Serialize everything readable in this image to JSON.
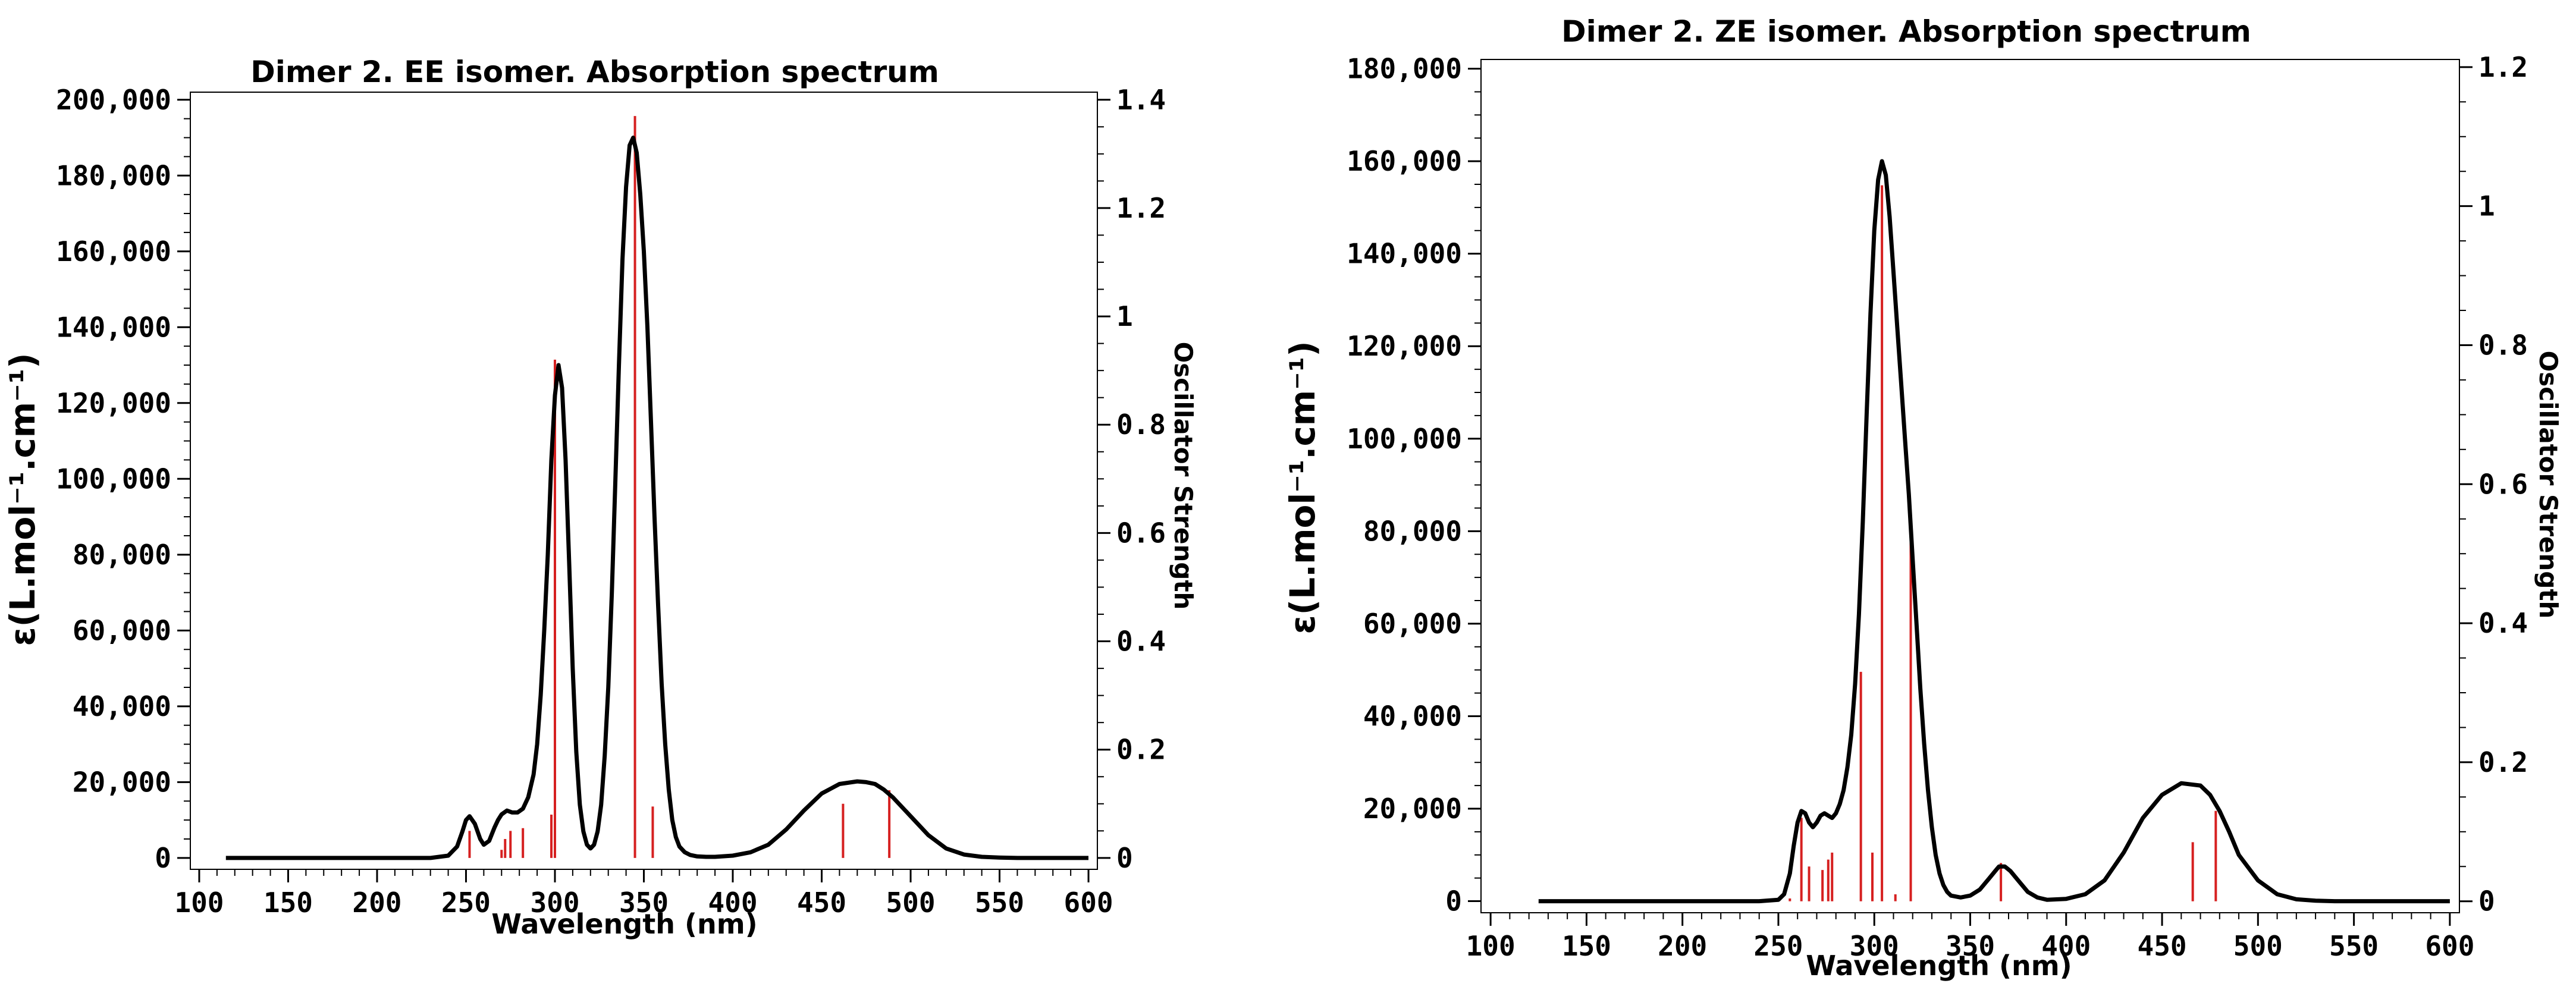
{
  "chart_data": [
    {
      "type": "line",
      "title": "Dimer 2.  EE isomer. Absorption spectrum",
      "xlabel": "Wavelength (nm)",
      "ylabel": "ε(L.mol⁻¹.cm⁻¹)",
      "y2label": "Oscillator Strength",
      "xlim": [
        95,
        605
      ],
      "ylim": [
        -3000,
        202000
      ],
      "y2lim": [
        -0.021,
        1.414
      ],
      "x_ticks": [
        100,
        150,
        200,
        250,
        300,
        350,
        400,
        450,
        500,
        550,
        600
      ],
      "y_ticks": [
        0,
        20000,
        40000,
        60000,
        80000,
        100000,
        120000,
        140000,
        160000,
        180000,
        200000
      ],
      "y_tick_labels": [
        "0",
        "20,000",
        "40,000",
        "60,000",
        "80,000",
        "100,000",
        "120,000",
        "140,000",
        "160,000",
        "180,000",
        "200,000"
      ],
      "y2_ticks": [
        0,
        0.2,
        0.4,
        0.6,
        0.8,
        1.0,
        1.2,
        1.4
      ],
      "y2_tick_labels": [
        "0",
        "0.2",
        "0.4",
        "0.6",
        "0.8",
        "1",
        "1.2",
        "1.4"
      ],
      "series": [
        {
          "type": "line",
          "color": "#000000",
          "x": [
            115,
            230,
            240,
            245,
            248,
            250,
            252,
            255,
            258,
            260,
            263,
            266,
            268,
            270,
            273,
            276,
            279,
            282,
            285,
            288,
            290,
            292,
            294,
            296,
            298,
            300,
            302,
            304,
            306,
            308,
            310,
            312,
            314,
            316,
            318,
            320,
            322,
            324,
            326,
            328,
            330,
            332,
            334,
            336,
            338,
            340,
            342,
            344,
            346,
            348,
            350,
            352,
            354,
            356,
            358,
            360,
            362,
            364,
            366,
            368,
            370,
            373,
            376,
            380,
            385,
            390,
            400,
            410,
            420,
            430,
            440,
            450,
            460,
            470,
            475,
            480,
            485,
            490,
            500,
            510,
            520,
            530,
            540,
            550,
            560,
            600
          ],
          "y": [
            0,
            0,
            600,
            3000,
            7000,
            10000,
            11000,
            9000,
            5000,
            3500,
            4500,
            8000,
            10000,
            11500,
            12500,
            12000,
            12000,
            13000,
            16000,
            22000,
            30000,
            43000,
            60000,
            80000,
            105000,
            122000,
            130000,
            124000,
            105000,
            78000,
            50000,
            28000,
            14000,
            7000,
            3500,
            2500,
            3500,
            7000,
            14000,
            27000,
            45000,
            70000,
            100000,
            130000,
            158000,
            177000,
            188000,
            190000,
            186000,
            175000,
            160000,
            140000,
            115000,
            90000,
            67000,
            46000,
            30000,
            18000,
            10000,
            5500,
            3000,
            1500,
            800,
            400,
            300,
            300,
            600,
            1500,
            3500,
            7500,
            12500,
            17000,
            19500,
            20200,
            20000,
            19500,
            18000,
            16000,
            11000,
            6000,
            2500,
            900,
            300,
            100,
            0,
            0
          ]
        },
        {
          "type": "stick",
          "color": "#d62020",
          "x": [
            252,
            270,
            272,
            275,
            282,
            298,
            300,
            345,
            355,
            462,
            488
          ],
          "f": [
            0.05,
            0.015,
            0.035,
            0.05,
            0.055,
            0.08,
            0.92,
            1.37,
            0.095,
            0.1,
            0.125
          ]
        }
      ]
    },
    {
      "type": "line",
      "title": "Dimer 2.  ZE isomer. Absorption spectrum",
      "xlabel": "Wavelength (nm)",
      "ylabel": "ε(L.mol⁻¹.cm⁻¹)",
      "y2label": "Oscillator Strength",
      "xlim": [
        95,
        605
      ],
      "ylim": [
        -2500,
        182000
      ],
      "y2lim": [
        -0.0165,
        1.211
      ],
      "x_ticks": [
        100,
        150,
        200,
        250,
        300,
        350,
        400,
        450,
        500,
        550,
        600
      ],
      "y_ticks": [
        0,
        20000,
        40000,
        60000,
        80000,
        100000,
        120000,
        140000,
        160000,
        180000
      ],
      "y_tick_labels": [
        "0",
        "20,000",
        "40,000",
        "60,000",
        "80,000",
        "100,000",
        "120,000",
        "140,000",
        "160,000",
        "180,000"
      ],
      "y2_ticks": [
        0,
        0.2,
        0.4,
        0.6,
        0.8,
        1.0,
        1.2
      ],
      "y2_tick_labels": [
        "0",
        "0.2",
        "0.4",
        "0.6",
        "0.8",
        "1",
        "1.2"
      ],
      "series": [
        {
          "type": "line",
          "color": "#000000",
          "x": [
            125,
            240,
            250,
            253,
            256,
            258,
            260,
            262,
            264,
            266,
            268,
            270,
            272,
            274,
            276,
            278,
            280,
            282,
            284,
            286,
            288,
            290,
            292,
            294,
            296,
            298,
            300,
            302,
            304,
            306,
            308,
            310,
            312,
            314,
            316,
            318,
            320,
            322,
            324,
            326,
            328,
            330,
            332,
            334,
            336,
            338,
            340,
            345,
            350,
            355,
            360,
            363,
            365,
            368,
            371,
            375,
            380,
            385,
            390,
            400,
            410,
            420,
            430,
            440,
            450,
            460,
            470,
            475,
            480,
            485,
            490,
            500,
            510,
            520,
            530,
            540,
            550,
            600
          ],
          "y": [
            0,
            0,
            300,
            1500,
            6000,
            12000,
            17000,
            19500,
            19000,
            17000,
            16000,
            17000,
            18500,
            19000,
            18500,
            18000,
            19000,
            21000,
            24000,
            29000,
            36000,
            47000,
            62000,
            82000,
            105000,
            127000,
            145000,
            156000,
            160000,
            157000,
            148000,
            136000,
            124000,
            112000,
            100000,
            88000,
            74000,
            60000,
            46000,
            34000,
            24000,
            16000,
            10000,
            6000,
            3500,
            2000,
            1200,
            800,
            1200,
            2500,
            5000,
            6500,
            7500,
            7500,
            6500,
            4500,
            2000,
            800,
            300,
            500,
            1500,
            4500,
            10500,
            18000,
            23000,
            25500,
            25000,
            23000,
            19500,
            15000,
            10000,
            4500,
            1500,
            400,
            100,
            0,
            0,
            0
          ]
        },
        {
          "type": "stick",
          "color": "#d62020",
          "x": [
            256,
            262,
            266,
            273,
            276,
            278,
            293,
            299,
            304,
            311,
            319,
            366,
            466,
            478
          ],
          "f": [
            0.004,
            0.12,
            0.05,
            0.045,
            0.06,
            0.07,
            0.33,
            0.07,
            1.03,
            0.01,
            0.55,
            0.055,
            0.085,
            0.13
          ]
        }
      ]
    }
  ]
}
